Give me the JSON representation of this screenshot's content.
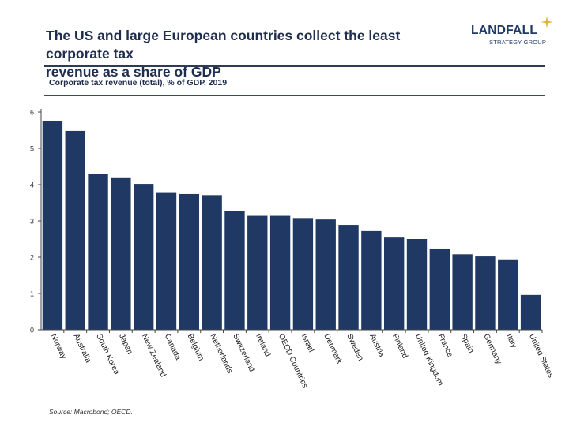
{
  "header": {
    "title_line1": "The US and large European countries collect the least corporate tax",
    "title_line2": "revenue as a share of GDP",
    "logo_name": "LANDFALL",
    "logo_sub": "STRATEGY GROUP"
  },
  "colors": {
    "bar": "#1f3864",
    "title": "#1f2d4e",
    "axis": "#444444",
    "logo_star": "#e0b23c"
  },
  "chart_data": {
    "type": "bar",
    "title": "Corporate tax revenue (total), % of GDP, 2019",
    "xlabel": "",
    "ylabel": "",
    "ylim": [
      0,
      6
    ],
    "yticks": [
      0,
      1,
      2,
      3,
      4,
      5,
      6
    ],
    "grid": false,
    "legend": "none",
    "categories": [
      "Norway",
      "Australia",
      "South Korea",
      "Japan",
      "New Zealand",
      "Canada",
      "Belgium",
      "Netherlands",
      "Switzerland",
      "Ireland",
      "OECD Countries",
      "Israel",
      "Denmark",
      "Sweden",
      "Austria",
      "Finland",
      "United Kingdom",
      "France",
      "Spain",
      "Germany",
      "Italy",
      "United States"
    ],
    "values": [
      5.74,
      5.48,
      4.3,
      4.2,
      4.02,
      3.77,
      3.74,
      3.71,
      3.27,
      3.14,
      3.14,
      3.08,
      3.04,
      2.89,
      2.72,
      2.54,
      2.5,
      2.24,
      2.08,
      2.02,
      1.94,
      0.96
    ]
  },
  "footer": {
    "source": "Source: Macrobond;  OECD."
  }
}
